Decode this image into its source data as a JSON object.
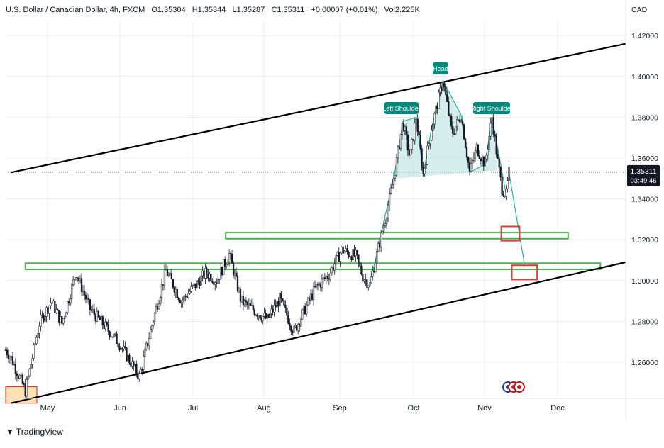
{
  "header": {
    "symbol": "U.S. Dollar / Canadian Dollar, 4h, FXCM",
    "open": "O1.35304",
    "high": "H1.35344",
    "low": "L1.35287",
    "close": "C1.35311",
    "change": "+0.00007 (+0.01%)",
    "volume": "Vol2.225K"
  },
  "currency_label": "CAD",
  "price_tag": {
    "price": "1.35311",
    "countdown": "03:49:46"
  },
  "branding": "TradingView",
  "colors": {
    "candles": "#131722",
    "channel": "#000000",
    "zone_green": "#4caf50",
    "target_red": "#e53935",
    "pattern_fill": "#b2dfdb",
    "pattern_line": "#26a69a",
    "label_bg": "#00897b",
    "axis_text": "#131722",
    "grid": "#e0e3eb",
    "start_zone": "#ffe0b2"
  },
  "chart_data": {
    "type": "candlestick",
    "title": "U.S. Dollar / Canadian Dollar, 4h, FXCM",
    "ylabel": "CAD",
    "ylim": [
      1.24,
      1.435
    ],
    "y_ticks": [
      "1.42000",
      "1.40000",
      "1.38000",
      "1.36000",
      "1.34000",
      "1.32000",
      "1.30000",
      "1.28000",
      "1.26000"
    ],
    "x_ticks": [
      "May",
      "Jun",
      "Jul",
      "Aug",
      "Sep",
      "Oct",
      "Nov",
      "Dec"
    ],
    "last_price": 1.35311,
    "price_path": [
      {
        "t": 0,
        "p": 1.266
      },
      {
        "t": 8,
        "p": 1.262
      },
      {
        "t": 28,
        "p": 1.246
      },
      {
        "t": 48,
        "p": 1.279
      },
      {
        "t": 65,
        "p": 1.29
      },
      {
        "t": 80,
        "p": 1.279
      },
      {
        "t": 100,
        "p": 1.304
      },
      {
        "t": 120,
        "p": 1.286
      },
      {
        "t": 160,
        "p": 1.27
      },
      {
        "t": 190,
        "p": 1.253
      },
      {
        "t": 210,
        "p": 1.281
      },
      {
        "t": 228,
        "p": 1.305
      },
      {
        "t": 250,
        "p": 1.29
      },
      {
        "t": 268,
        "p": 1.297
      },
      {
        "t": 285,
        "p": 1.304
      },
      {
        "t": 300,
        "p": 1.3
      },
      {
        "t": 318,
        "p": 1.313
      },
      {
        "t": 335,
        "p": 1.29
      },
      {
        "t": 355,
        "p": 1.285
      },
      {
        "t": 372,
        "p": 1.281
      },
      {
        "t": 390,
        "p": 1.291
      },
      {
        "t": 410,
        "p": 1.275
      },
      {
        "t": 440,
        "p": 1.296
      },
      {
        "t": 460,
        "p": 1.303
      },
      {
        "t": 478,
        "p": 1.315
      },
      {
        "t": 498,
        "p": 1.312
      },
      {
        "t": 508,
        "p": 1.302
      },
      {
        "t": 518,
        "p": 1.298
      },
      {
        "t": 528,
        "p": 1.313
      },
      {
        "t": 540,
        "p": 1.33
      },
      {
        "t": 553,
        "p": 1.352
      },
      {
        "t": 565,
        "p": 1.378
      },
      {
        "t": 575,
        "p": 1.36
      },
      {
        "t": 584,
        "p": 1.38
      },
      {
        "t": 594,
        "p": 1.352
      },
      {
        "t": 606,
        "p": 1.375
      },
      {
        "t": 622,
        "p": 1.398
      },
      {
        "t": 635,
        "p": 1.372
      },
      {
        "t": 648,
        "p": 1.381
      },
      {
        "t": 660,
        "p": 1.353
      },
      {
        "t": 670,
        "p": 1.365
      },
      {
        "t": 682,
        "p": 1.357
      },
      {
        "t": 692,
        "p": 1.38
      },
      {
        "t": 700,
        "p": 1.358
      },
      {
        "t": 706,
        "p": 1.345
      },
      {
        "t": 712,
        "p": 1.342
      },
      {
        "t": 716,
        "p": 1.353
      }
    ],
    "annotations": {
      "head": "Head",
      "left_shoulder": "Left Shoulder",
      "right_shoulder": "Right Shoulder",
      "channel_upper": [
        {
          "t": 8,
          "p": 1.353
        },
        {
          "t": 882,
          "p": 1.416
        }
      ],
      "channel_lower": [
        {
          "t": 8,
          "p": 1.24
        },
        {
          "t": 882,
          "p": 1.309
        }
      ],
      "support_zones": [
        {
          "t0": 313,
          "t1": 800,
          "p0": 1.3205,
          "p1": 1.3235
        },
        {
          "t0": 28,
          "t1": 846,
          "p0": 1.3055,
          "p1": 1.3085
        }
      ],
      "target_boxes": [
        {
          "t0": 705,
          "t1": 731,
          "p0": 1.3195,
          "p1": 1.3265
        },
        {
          "t0": 720,
          "t1": 756,
          "p0": 1.3005,
          "p1": 1.3075
        }
      ],
      "projection": [
        {
          "t": 716,
          "p": 1.353
        },
        {
          "t": 738,
          "p": 1.308
        }
      ]
    }
  }
}
